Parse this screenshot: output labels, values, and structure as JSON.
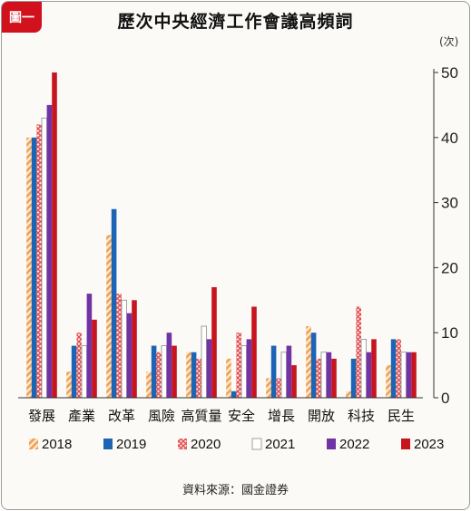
{
  "badge": "圖一",
  "chart_data": {
    "type": "bar",
    "title": "歷次中央經濟工作會議高頻詞",
    "unit_label": "(次)",
    "categories": [
      "發展",
      "產業",
      "改革",
      "風險",
      "高質量",
      "安全",
      "增長",
      "開放",
      "科技",
      "民生"
    ],
    "series": [
      {
        "name": "2018",
        "color": "#f0a050",
        "pattern": "hatch",
        "values": [
          40,
          4,
          25,
          4,
          7,
          6,
          3,
          11,
          1,
          5
        ]
      },
      {
        "name": "2019",
        "color": "#1e64b4",
        "pattern": "solid",
        "values": [
          40,
          8,
          29,
          8,
          7,
          1,
          8,
          10,
          6,
          9
        ]
      },
      {
        "name": "2020",
        "color": "#e04848",
        "pattern": "cross",
        "values": [
          42,
          10,
          16,
          7,
          6,
          10,
          3,
          6,
          14,
          9
        ]
      },
      {
        "name": "2021",
        "color": "#ffffff",
        "pattern": "outline",
        "values": [
          43,
          8,
          15,
          8,
          11,
          8,
          7,
          7,
          9,
          7
        ]
      },
      {
        "name": "2022",
        "color": "#7034a4",
        "pattern": "solid",
        "values": [
          45,
          16,
          13,
          10,
          9,
          9,
          8,
          7,
          7,
          7
        ]
      },
      {
        "name": "2023",
        "color": "#c8141e",
        "pattern": "solid",
        "values": [
          50,
          12,
          15,
          8,
          17,
          14,
          5,
          6,
          9,
          7
        ]
      }
    ],
    "ylim": [
      0,
      50
    ],
    "yticks": [
      0,
      10,
      20,
      30,
      40,
      50
    ],
    "y_axis_side": "right",
    "grid": false,
    "legend": "bottom"
  },
  "source": "資料來源：國金證券"
}
